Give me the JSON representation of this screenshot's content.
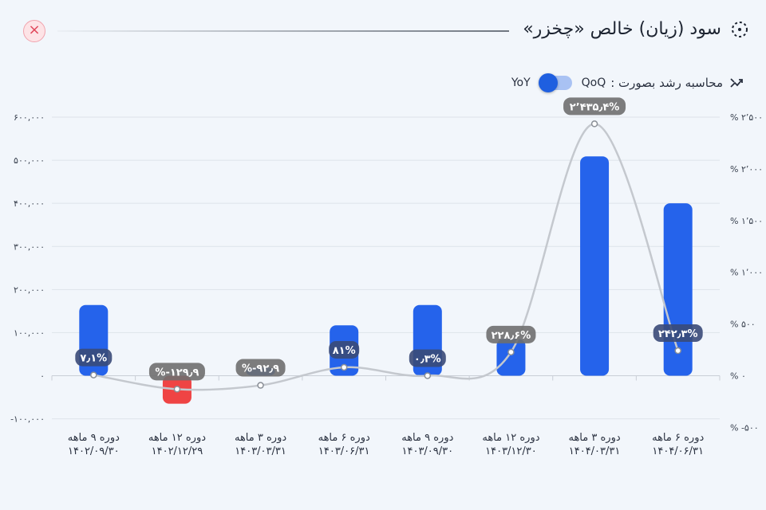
{
  "header": {
    "title": "سود (زیان) خالص «چخزر»",
    "close_label": "×"
  },
  "growth": {
    "label": "محاسبه رشد بصورت :",
    "qoq": "QoQ",
    "yoy": "YoY",
    "selected": "YoY"
  },
  "colors": {
    "positive_bar": "#2563eb",
    "negative_bar": "#ef4444",
    "line": "#c4c8ce",
    "label_bg": "#6f6f6f",
    "label_bg_dark": "#3a4a78"
  },
  "chart_data": {
    "type": "bar",
    "categories": [
      [
        "دوره ۹ ماهه",
        "۱۴۰۲/۰۹/۳۰"
      ],
      [
        "دوره ۱۲ ماهه",
        "۱۴۰۲/۱۲/۲۹"
      ],
      [
        "دوره ۳ ماهه",
        "۱۴۰۳/۰۳/۳۱"
      ],
      [
        "دوره ۶ ماهه",
        "۱۴۰۳/۰۶/۳۱"
      ],
      [
        "دوره ۹ ماهه",
        "۱۴۰۳/۰۹/۳۰"
      ],
      [
        "دوره ۱۲ ماهه",
        "۱۴۰۳/۱۲/۳۰"
      ],
      [
        "دوره ۳ ماهه",
        "۱۴۰۴/۰۳/۳۱"
      ],
      [
        "دوره ۶ ماهه",
        "۱۴۰۴/۰۶/۳۱"
      ]
    ],
    "series": [
      {
        "type": "bar",
        "values": [
          164000,
          -65000,
          19000,
          117000,
          164000,
          85000,
          509000,
          400000
        ]
      },
      {
        "type": "line",
        "axis": "right",
        "values": [
          7.1,
          -129.9,
          -92.9,
          81,
          0.3,
          228.6,
          2435.4,
          242.3
        ],
        "labels": [
          "۷٫۱%",
          "%-۱۲۹٫۹",
          "%-۹۲٫۹",
          "۸۱%",
          "۰٫۳%",
          "۲۲۸٫۶%",
          "۲٬۴۳۵٫۴%",
          "۲۴۲٫۳%"
        ]
      }
    ],
    "left_axis": {
      "ticks": [
        600000,
        500000,
        400000,
        300000,
        200000,
        100000,
        0,
        -100000
      ],
      "tick_labels": [
        "۶۰۰,۰۰۰",
        "۵۰۰,۰۰۰",
        "۴۰۰,۰۰۰",
        "۳۰۰,۰۰۰",
        "۲۰۰,۰۰۰",
        "۱۰۰,۰۰۰",
        "۰",
        "-۱۰۰,۰۰۰"
      ],
      "range": [
        -100000,
        600000
      ]
    },
    "right_axis": {
      "ticks": [
        2500,
        2000,
        1500,
        1000,
        500,
        0,
        -500
      ],
      "tick_labels": [
        "% ۲٬۵۰۰",
        "% ۲٬۰۰۰",
        "% ۱٬۵۰۰",
        "% ۱٬۰۰۰",
        "% ۵۰۰",
        "% ۰",
        "% -۵۰۰"
      ],
      "range": [
        -500,
        2500
      ]
    },
    "grid": true
  }
}
